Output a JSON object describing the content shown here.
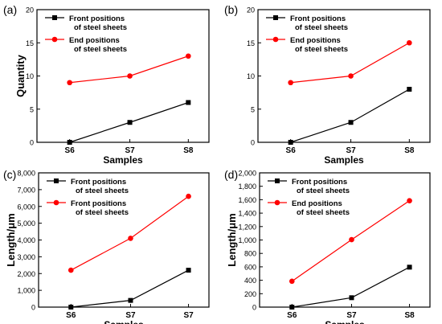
{
  "chart_data": [
    {
      "panel_label": "(a)",
      "type": "line",
      "categories": [
        "S6",
        "S7",
        "S8"
      ],
      "xlabel": "Samples",
      "ylabel": "Quantity",
      "ylim": [
        0,
        20
      ],
      "yticks": [
        0,
        5,
        10,
        15,
        20
      ],
      "ytick_labels": [
        "0",
        "5",
        "10",
        "15",
        "20"
      ],
      "legend_position": "top-left",
      "series": [
        {
          "name": "Front positions of steel sheets",
          "legend_lines": [
            "Front positions",
            "of steel sheets"
          ],
          "color": "#000000",
          "marker": "square",
          "values": [
            0,
            3,
            6
          ]
        },
        {
          "name": "End positions of steel sheets",
          "legend_lines": [
            "End positions",
            "of steel sheets"
          ],
          "color": "#ff0000",
          "marker": "circle",
          "values": [
            9,
            10,
            13
          ]
        }
      ]
    },
    {
      "panel_label": "(b)",
      "type": "line",
      "categories": [
        "S6",
        "S7",
        "S8"
      ],
      "xlabel": "Samples",
      "ylabel": "",
      "ylim": [
        0,
        20
      ],
      "yticks": [
        0,
        5,
        10,
        15,
        20
      ],
      "ytick_labels": [
        "0",
        "5",
        "10",
        "15",
        "20"
      ],
      "legend_position": "top-left",
      "series": [
        {
          "name": "Front positions of steel sheets",
          "legend_lines": [
            "Front positions",
            "of steel sheets"
          ],
          "color": "#000000",
          "marker": "square",
          "values": [
            0,
            3,
            8
          ]
        },
        {
          "name": "End positions of steel sheets",
          "legend_lines": [
            "End positions",
            "of steel sheets"
          ],
          "color": "#ff0000",
          "marker": "circle",
          "values": [
            9,
            10,
            15
          ]
        }
      ]
    },
    {
      "panel_label": "(c)",
      "type": "line",
      "categories": [
        "S6",
        "S7",
        "S7"
      ],
      "xlabel": "Samples",
      "ylabel": "Length/μm",
      "ylim": [
        0,
        8000
      ],
      "yticks": [
        0,
        1000,
        2000,
        3000,
        4000,
        5000,
        6000,
        7000,
        8000
      ],
      "ytick_labels": [
        "0",
        "1,000",
        "2,000",
        "3,000",
        "4,000",
        "5,000",
        "6,000",
        "7,000",
        "8,000"
      ],
      "legend_position": "top-left",
      "series": [
        {
          "name": "Front positions of steel sheets",
          "legend_lines": [
            "Front positions",
            "of steel sheets"
          ],
          "color": "#000000",
          "marker": "square",
          "values": [
            0,
            400,
            2200
          ]
        },
        {
          "name": "Front positions of steel sheets",
          "legend_lines": [
            "Front positions",
            "of steel sheets"
          ],
          "color": "#ff0000",
          "marker": "circle",
          "values": [
            2200,
            4100,
            6600
          ]
        }
      ]
    },
    {
      "panel_label": "(d)",
      "type": "line",
      "categories": [
        "S6",
        "S7",
        "S8"
      ],
      "xlabel": "Samples",
      "ylabel": "Length/μm",
      "ylim": [
        0,
        2000
      ],
      "yticks": [
        0,
        200,
        400,
        600,
        800,
        1000,
        1200,
        1400,
        1600,
        1800,
        2000
      ],
      "ytick_labels": [
        "0",
        "200",
        "400",
        "600",
        "800",
        "1,000",
        "1,200",
        "1,400",
        "1,600",
        "1,800",
        "2,000"
      ],
      "legend_position": "top-left",
      "series": [
        {
          "name": "Front positions of steel sheets",
          "legend_lines": [
            "Front positions",
            "of steel sheets"
          ],
          "color": "#000000",
          "marker": "square",
          "values": [
            0,
            140,
            595
          ]
        },
        {
          "name": "End positions of steel sheets",
          "legend_lines": [
            "End positions",
            "of steel sheets"
          ],
          "color": "#ff0000",
          "marker": "circle",
          "values": [
            385,
            1005,
            1585
          ]
        }
      ]
    }
  ]
}
